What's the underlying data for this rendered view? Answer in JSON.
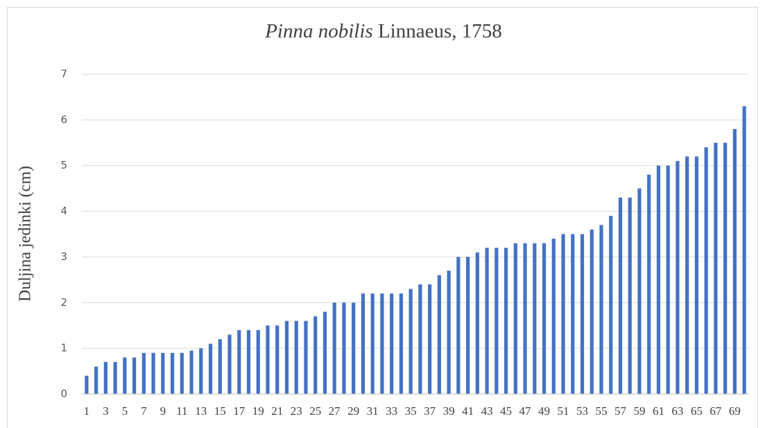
{
  "chart_data": {
    "type": "bar",
    "title": [
      "Pinna nobilis",
      "Linnaeus, 1758"
    ],
    "y_label": "Duljina jedinki (cm)",
    "categories": [
      "1",
      null,
      "3",
      null,
      "5",
      null,
      "7",
      null,
      "9",
      null,
      "11",
      null,
      "13",
      null,
      "15",
      null,
      "17",
      null,
      "19",
      null,
      "21",
      null,
      "23",
      null,
      "25",
      null,
      "27",
      null,
      "29",
      null,
      "31",
      null,
      "33",
      null,
      "35",
      null,
      "37",
      null,
      "39",
      null,
      "41",
      null,
      "43",
      null,
      "45",
      null,
      "47",
      null,
      "49",
      null,
      "51",
      null,
      "53",
      null,
      "55",
      null,
      "57",
      null,
      "59",
      null,
      "61",
      null,
      "63",
      null,
      "65",
      null,
      "67",
      null,
      "69",
      null
    ],
    "values": [
      0.4,
      0.6,
      0.7,
      0.7,
      0.8,
      0.8,
      0.9,
      0.9,
      0.9,
      0.9,
      0.9,
      0.95,
      1.0,
      1.1,
      1.2,
      1.3,
      1.4,
      1.4,
      1.4,
      1.5,
      1.5,
      1.6,
      1.6,
      1.6,
      1.7,
      1.8,
      2.0,
      2.0,
      2.0,
      2.2,
      2.2,
      2.2,
      2.2,
      2.2,
      2.3,
      2.4,
      2.4,
      2.6,
      2.7,
      3.0,
      3.0,
      3.1,
      3.2,
      3.2,
      3.2,
      3.3,
      3.3,
      3.3,
      3.3,
      3.4,
      3.5,
      3.5,
      3.5,
      3.6,
      3.7,
      3.9,
      4.3,
      4.3,
      4.5,
      4.8,
      5.0,
      5.0,
      5.1,
      5.2,
      5.2,
      5.4,
      5.5,
      5.5,
      5.8,
      6.3
    ],
    "color": "#4472c4",
    "ylim": [
      0,
      7
    ],
    "yticks": [
      0,
      1,
      2,
      3,
      4,
      5,
      6,
      7
    ],
    "grid": true
  }
}
